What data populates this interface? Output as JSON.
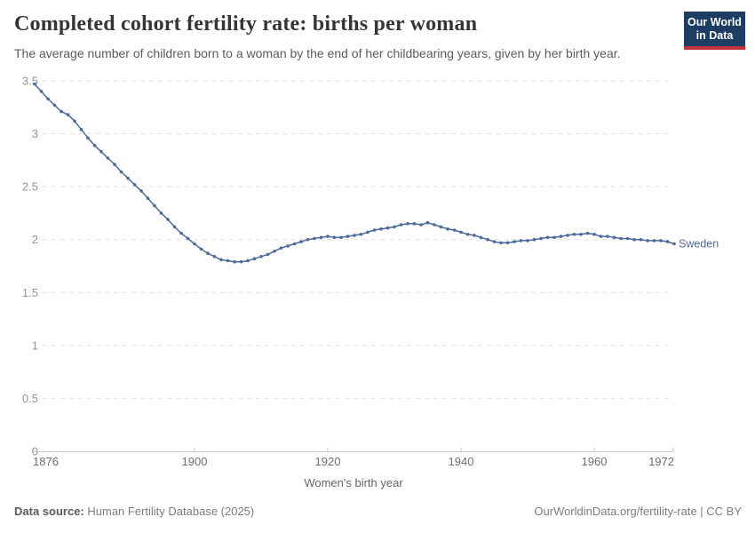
{
  "header": {
    "title": "Completed cohort fertility rate: births per woman",
    "subtitle": "The average number of children born to a woman by the end of her childbearing years, given by her birth year."
  },
  "logo": {
    "line1": "Our World",
    "line2": "in Data",
    "bg_color": "#1d3d63",
    "accent_color": "#c0323c"
  },
  "footer": {
    "source_label": "Data source:",
    "source_value": "Human Fertility Database (2025)",
    "right_text": "OurWorldinData.org/fertility-rate | CC BY"
  },
  "chart_data": {
    "type": "line",
    "title": "Completed cohort fertility rate: births per woman",
    "xlabel": "Women's birth year",
    "ylabel": "",
    "series_label": "Sweden",
    "line_color": "#4c6a9c",
    "grid": "horizontal dashed",
    "legend_position": "end-of-line label",
    "xlim": [
      1876,
      1972
    ],
    "ylim": [
      0,
      3.5
    ],
    "y_ticks": [
      0,
      0.5,
      1,
      1.5,
      2,
      2.5,
      3,
      3.5
    ],
    "x_ticks": [
      1876,
      1900,
      1920,
      1940,
      1960,
      1972
    ],
    "x": [
      1876,
      1877,
      1878,
      1879,
      1880,
      1881,
      1882,
      1883,
      1884,
      1885,
      1886,
      1887,
      1888,
      1889,
      1890,
      1891,
      1892,
      1893,
      1894,
      1895,
      1896,
      1897,
      1898,
      1899,
      1900,
      1901,
      1902,
      1903,
      1904,
      1905,
      1906,
      1907,
      1908,
      1909,
      1910,
      1911,
      1912,
      1913,
      1914,
      1915,
      1916,
      1917,
      1918,
      1919,
      1920,
      1921,
      1922,
      1923,
      1924,
      1925,
      1926,
      1927,
      1928,
      1929,
      1930,
      1931,
      1932,
      1933,
      1934,
      1935,
      1936,
      1937,
      1938,
      1939,
      1940,
      1941,
      1942,
      1943,
      1944,
      1945,
      1946,
      1947,
      1948,
      1949,
      1950,
      1951,
      1952,
      1953,
      1954,
      1955,
      1956,
      1957,
      1958,
      1959,
      1960,
      1961,
      1962,
      1963,
      1964,
      1965,
      1966,
      1967,
      1968,
      1969,
      1970,
      1971,
      1972
    ],
    "values": [
      3.47,
      3.4,
      3.33,
      3.27,
      3.21,
      3.18,
      3.12,
      3.04,
      2.96,
      2.89,
      2.83,
      2.77,
      2.71,
      2.64,
      2.58,
      2.52,
      2.46,
      2.39,
      2.32,
      2.25,
      2.19,
      2.12,
      2.06,
      2.01,
      1.96,
      1.91,
      1.87,
      1.84,
      1.81,
      1.8,
      1.79,
      1.79,
      1.8,
      1.82,
      1.84,
      1.86,
      1.89,
      1.92,
      1.94,
      1.96,
      1.98,
      2.0,
      2.01,
      2.02,
      2.03,
      2.02,
      2.02,
      2.03,
      2.04,
      2.05,
      2.07,
      2.09,
      2.1,
      2.11,
      2.12,
      2.14,
      2.15,
      2.15,
      2.14,
      2.16,
      2.14,
      2.12,
      2.1,
      2.09,
      2.07,
      2.05,
      2.04,
      2.02,
      2.0,
      1.98,
      1.97,
      1.97,
      1.98,
      1.99,
      1.99,
      2.0,
      2.01,
      2.02,
      2.02,
      2.03,
      2.04,
      2.05,
      2.05,
      2.06,
      2.05,
      2.03,
      2.03,
      2.02,
      2.01,
      2.01,
      2.0,
      2.0,
      1.99,
      1.99,
      1.99,
      1.98,
      1.96
    ]
  }
}
